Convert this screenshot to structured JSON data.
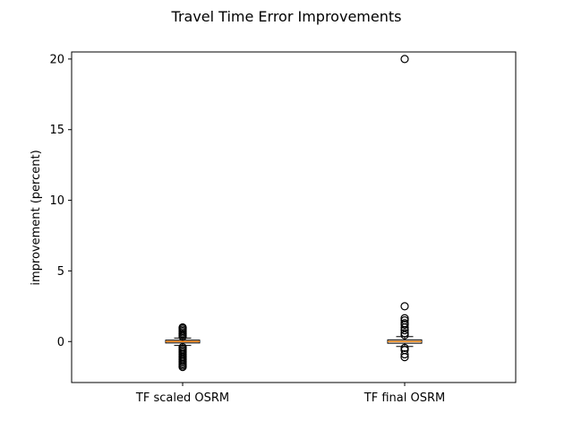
{
  "chart_data": {
    "type": "box",
    "title": "Travel Time Error Improvements",
    "xlabel": "",
    "ylabel": "improvement (percent)",
    "ylim": [
      -2.9,
      20.5
    ],
    "yticks": [
      0,
      5,
      10,
      15,
      20
    ],
    "grid": false,
    "categories": [
      "TF scaled OSRM",
      "TF final OSRM"
    ],
    "boxes": [
      {
        "name": "TF scaled OSRM",
        "q1": -0.1,
        "median": 0.0,
        "q3": 0.1,
        "whisker_low": -0.28,
        "whisker_high": 0.25,
        "outliers": [
          -1.8,
          -1.7,
          -1.6,
          -1.5,
          -1.4,
          -1.3,
          -1.2,
          -1.1,
          -1.0,
          -0.9,
          -0.8,
          -0.7,
          -0.6,
          -0.5,
          -0.4,
          0.35,
          0.45,
          0.55,
          0.65,
          0.75,
          0.85,
          0.95,
          1.0
        ]
      },
      {
        "name": "TF final OSRM",
        "q1": -0.12,
        "median": 0.0,
        "q3": 0.12,
        "whisker_low": -0.35,
        "whisker_high": 0.35,
        "outliers": [
          -1.1,
          -0.9,
          -0.6,
          -0.45,
          0.45,
          0.6,
          0.8,
          1.0,
          1.2,
          1.3,
          1.5,
          1.65,
          2.5,
          20.0
        ]
      }
    ],
    "colors": {
      "box": "#000000",
      "median": "#ff7f0e",
      "outlier_fill": "none"
    }
  }
}
